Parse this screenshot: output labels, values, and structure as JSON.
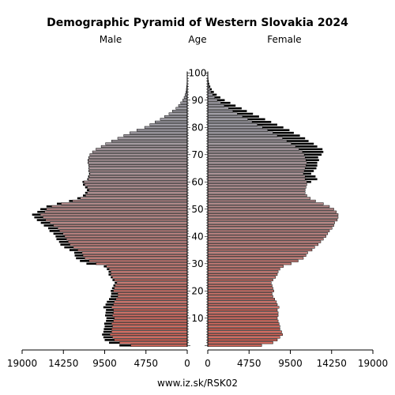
{
  "chart_data": {
    "type": "population-pyramid",
    "title": "Demographic Pyramid of Western Slovakia 2024",
    "left_label": "Male",
    "center_label": "Age",
    "right_label": "Female",
    "footer": "www.iz.sk/RSK02",
    "xlim": [
      0,
      19000
    ],
    "x_ticks": [
      19000,
      14250,
      9500,
      4750,
      0
    ],
    "x_tick_labels": [
      "19000",
      "14250",
      "9500",
      "4750",
      "0"
    ],
    "age_ticks": [
      10,
      20,
      30,
      40,
      50,
      60,
      70,
      80,
      90,
      100
    ],
    "ages": [
      0,
      1,
      2,
      3,
      4,
      5,
      6,
      7,
      8,
      9,
      10,
      11,
      12,
      13,
      14,
      15,
      16,
      17,
      18,
      19,
      20,
      21,
      22,
      23,
      24,
      25,
      26,
      27,
      28,
      29,
      30,
      31,
      32,
      33,
      34,
      35,
      36,
      37,
      38,
      39,
      40,
      41,
      42,
      43,
      44,
      45,
      46,
      47,
      48,
      49,
      50,
      51,
      52,
      53,
      54,
      55,
      56,
      57,
      58,
      59,
      60,
      61,
      62,
      63,
      64,
      65,
      66,
      67,
      68,
      69,
      70,
      71,
      72,
      73,
      74,
      75,
      76,
      77,
      78,
      79,
      80,
      81,
      82,
      83,
      84,
      85,
      86,
      87,
      88,
      89,
      90,
      91,
      92,
      93,
      94,
      95,
      96,
      97,
      98,
      99,
      100
    ],
    "series": [
      {
        "name": "Male",
        "values": [
          6500,
          7800,
          8400,
          8600,
          8900,
          8700,
          8700,
          8600,
          8700,
          8500,
          8400,
          8600,
          8500,
          8500,
          8700,
          8500,
          8400,
          8200,
          8000,
          8000,
          8500,
          8400,
          8300,
          8100,
          8400,
          8600,
          8800,
          8800,
          9000,
          9300,
          10500,
          11300,
          11800,
          12000,
          12100,
          12600,
          13100,
          13500,
          13700,
          13900,
          14100,
          14300,
          14700,
          14900,
          15400,
          15800,
          16300,
          16600,
          16900,
          16400,
          16200,
          15600,
          14500,
          13200,
          12300,
          11700,
          11500,
          11300,
          11500,
          11800,
          11900,
          11400,
          11300,
          11200,
          11300,
          11300,
          11300,
          11400,
          11400,
          11300,
          11200,
          10900,
          10500,
          9900,
          9400,
          8700,
          8000,
          7300,
          6600,
          5800,
          4900,
          4300,
          3700,
          3100,
          2600,
          2100,
          1700,
          1300,
          1000,
          750,
          520,
          360,
          250,
          160,
          100,
          60,
          35,
          20,
          12,
          6,
          3
        ],
        "overflow": [
          1300,
          1200,
          1100,
          1050,
          900,
          950,
          900,
          900,
          850,
          850,
          900,
          850,
          900,
          850,
          950,
          900,
          850,
          800,
          800,
          750,
          300,
          250,
          200,
          250,
          200,
          200,
          250,
          250,
          250,
          300,
          1100,
          1050,
          1000,
          950,
          900,
          950,
          1050,
          1100,
          1050,
          1150,
          1050,
          1100,
          1150,
          1100,
          1100,
          1050,
          1000,
          1000,
          950,
          850,
          700,
          600,
          500,
          400,
          350,
          300,
          250,
          250,
          250,
          200,
          150,
          100,
          100,
          100,
          50,
          50,
          50,
          50,
          50,
          50,
          0,
          0,
          0,
          0,
          0,
          0,
          0,
          0,
          0,
          0,
          0,
          0,
          0,
          0,
          0,
          0,
          0,
          0,
          0,
          0,
          0,
          0,
          0,
          0,
          0,
          0,
          0,
          0,
          0,
          0,
          0
        ]
      },
      {
        "name": "Female",
        "values": [
          6200,
          7500,
          8000,
          8300,
          8600,
          8500,
          8300,
          8300,
          8200,
          8100,
          8000,
          8100,
          8100,
          8000,
          8200,
          8000,
          7900,
          7700,
          7500,
          7400,
          7600,
          7500,
          7400,
          7300,
          7500,
          7800,
          8000,
          8100,
          8300,
          8700,
          9600,
          10400,
          11000,
          11300,
          11500,
          12000,
          12300,
          12700,
          13000,
          13300,
          13600,
          13800,
          14000,
          14300,
          14500,
          14600,
          14900,
          15000,
          15000,
          14800,
          14500,
          14000,
          13300,
          12400,
          11800,
          11400,
          11200,
          11200,
          11300,
          11400,
          11400,
          11200,
          11200,
          11000,
          11100,
          11200,
          11300,
          11400,
          11300,
          11200,
          11100,
          10900,
          10500,
          10100,
          9600,
          9100,
          8600,
          8000,
          7500,
          6900,
          6300,
          5700,
          5100,
          4600,
          4000,
          3400,
          2900,
          2400,
          1900,
          1500,
          1100,
          800,
          560,
          380,
          240,
          150,
          90,
          50,
          28,
          14,
          6
        ],
        "overflow": [
          0,
          0,
          0,
          0,
          0,
          0,
          0,
          0,
          0,
          0,
          0,
          0,
          0,
          0,
          0,
          0,
          0,
          0,
          0,
          0,
          0,
          0,
          0,
          0,
          0,
          0,
          0,
          0,
          0,
          0,
          0,
          0,
          0,
          0,
          0,
          0,
          0,
          0,
          0,
          0,
          0,
          0,
          0,
          0,
          0,
          0,
          0,
          0,
          0,
          0,
          0,
          0,
          0,
          0,
          0,
          0,
          0,
          0,
          0,
          0,
          500,
          1400,
          1200,
          900,
          1100,
          1300,
          1300,
          1200,
          1500,
          1500,
          2000,
          2400,
          2700,
          2500,
          2600,
          2500,
          2600,
          2600,
          2400,
          2500,
          2400,
          2300,
          2200,
          2000,
          1900,
          1800,
          1600,
          1500,
          1300,
          1100,
          850,
          650,
          470,
          320,
          220,
          140,
          90,
          55,
          30,
          16,
          8
        ]
      }
    ],
    "colors": {
      "bar_outline": "#000000",
      "overflow": "#000000",
      "young": "#d66a5e",
      "old": "#a09ea6"
    }
  }
}
